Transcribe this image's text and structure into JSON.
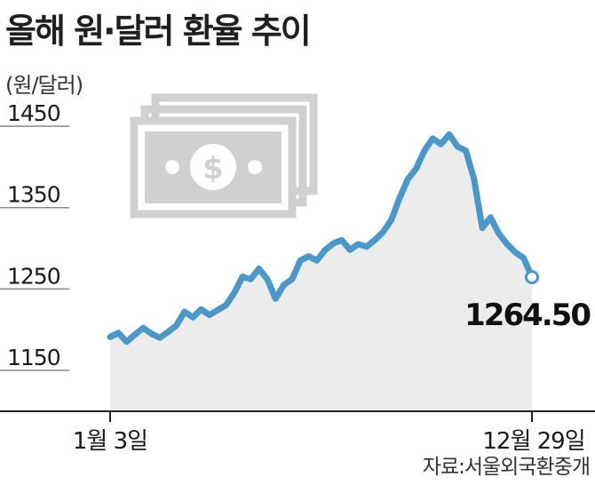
{
  "title": "올해 원·달러 환율 추이",
  "unit_label": "(원/달러)",
  "source": "자료:서울외국환중개",
  "icon": "stacked-dollar-bills-icon",
  "colors": {
    "line": "#4a97c9",
    "area": "#ececec",
    "grid": "#8a8a8a",
    "text": "#1a1a1a",
    "icon": "#d0d0d0"
  },
  "chart_data": {
    "type": "area",
    "title": "올해 원·달러 환율 추이",
    "xlabel": "",
    "ylabel": "(원/달러)",
    "ylim": [
      1140,
      1460
    ],
    "y_ticks": [
      1150,
      1250,
      1350,
      1450
    ],
    "x_tick_labels": [
      "1월 3일",
      "12월 29일"
    ],
    "last_value_label": "1264.50",
    "grid": "horizontal",
    "series": [
      {
        "x": [
          "1월 3일",
          "1월 10일",
          "1월 17일",
          "1월 24일",
          "1월 31일",
          "2월 7일",
          "2월 14일",
          "2월 21일",
          "2월 28일",
          "3월 7일",
          "3월 14일",
          "3월 21일",
          "3월 28일",
          "4월 4일",
          "4월 11일",
          "4월 18일",
          "4월 25일",
          "5월 2일",
          "5월 9일",
          "5월 16일",
          "5월 23일",
          "5월 30일",
          "6월 6일",
          "6월 13일",
          "6월 20일",
          "6월 27일",
          "7월 4일",
          "7월 11일",
          "7월 18일",
          "7월 25일",
          "8월 1일",
          "8월 8일",
          "8월 15일",
          "8월 22일",
          "8월 29일",
          "9월 5일",
          "9월 12일",
          "9월 19일",
          "9월 26일",
          "10월 4일",
          "10월 11일",
          "10월 18일",
          "10월 25일",
          "11월 1일",
          "11월 8일",
          "11월 15일",
          "11월 22일",
          "11월 29일",
          "12월 6일",
          "12월 13일",
          "12월 20일",
          "12월 29일"
        ],
        "values": [
          1191,
          1196,
          1185,
          1194,
          1202,
          1195,
          1190,
          1197,
          1205,
          1222,
          1215,
          1225,
          1218,
          1224,
          1230,
          1245,
          1265,
          1262,
          1275,
          1262,
          1238,
          1255,
          1262,
          1285,
          1290,
          1285,
          1298,
          1306,
          1310,
          1298,
          1305,
          1302,
          1310,
          1320,
          1335,
          1362,
          1385,
          1398,
          1420,
          1435,
          1428,
          1440,
          1425,
          1420,
          1385,
          1325,
          1338,
          1318,
          1305,
          1295,
          1288,
          1264.5
        ]
      }
    ]
  }
}
